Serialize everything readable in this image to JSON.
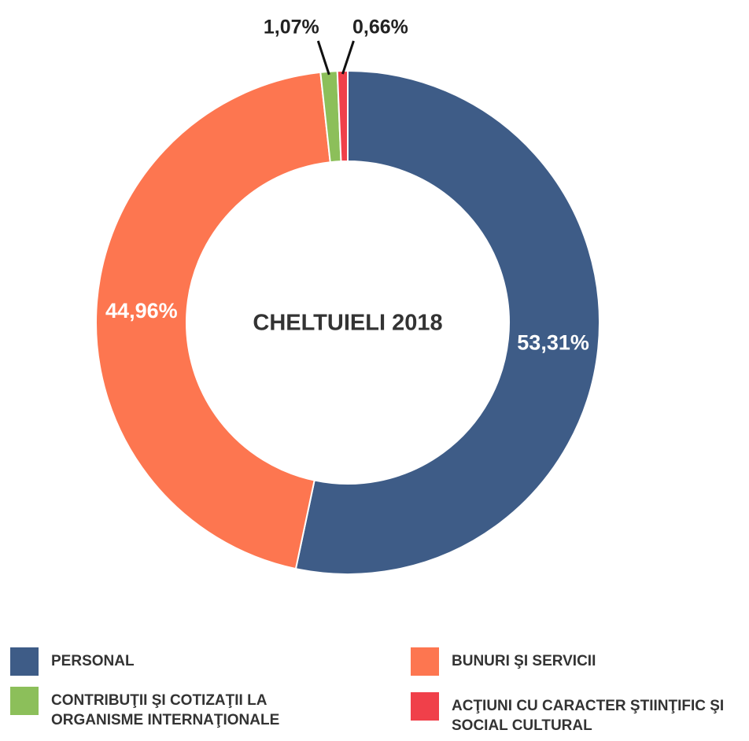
{
  "chart_data": {
    "type": "pie",
    "donut": true,
    "title": "CHELTUIELI 2018",
    "categories": [
      "PERSONAL",
      "BUNURI ŞI SERVICII",
      "CONTRIBUŢII ŞI COTIZAŢII LA ORGANISME INTERNAŢIONALE",
      "ACŢIUNI CU CARACTER ŞTIINŢIFIC ŞI SOCIAL CULTURAL"
    ],
    "values": [
      53.31,
      44.96,
      1.07,
      0.66
    ],
    "value_labels": [
      "53,31%",
      "44,96%",
      "1,07%",
      "0,66%"
    ],
    "colors": [
      "#3e5c87",
      "#fd7650",
      "#8cbf5a",
      "#f0404a"
    ]
  }
}
